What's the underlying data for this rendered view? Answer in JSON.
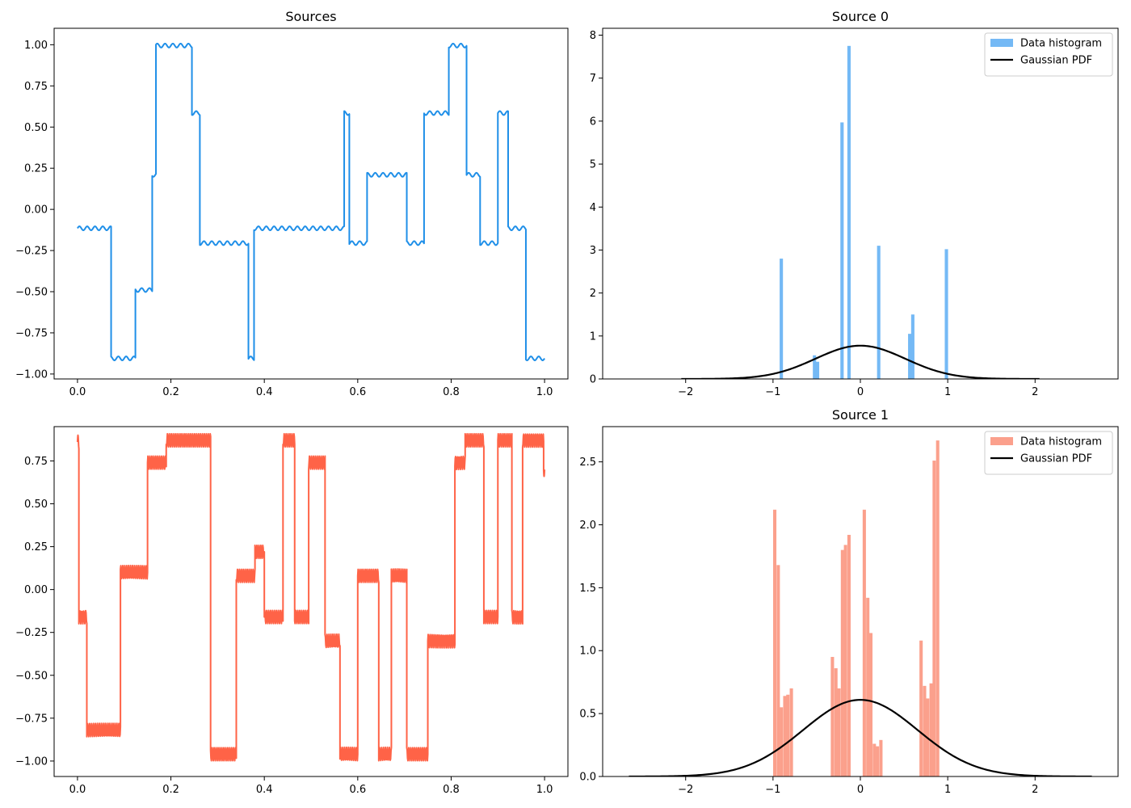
{
  "colors": {
    "source0_line": "#1f8fe8",
    "source1_line": "#ff6347",
    "hist0_fill": "#74b9f5",
    "hist1_fill": "#fba08c",
    "pdf_line": "#000000",
    "axes_edge": "#000000",
    "background": "#ffffff"
  },
  "chart_data": [
    {
      "id": "sources_top",
      "type": "line",
      "title": "Sources",
      "xlim": [
        -0.05,
        1.05
      ],
      "ylim": [
        -1.03,
        1.1
      ],
      "xticks": [
        0.0,
        0.2,
        0.4,
        0.6,
        0.8,
        1.0
      ],
      "xtick_labels": [
        "0.0",
        "0.2",
        "0.4",
        "0.6",
        "0.8",
        "1.0"
      ],
      "yticks": [
        -1.0,
        -0.75,
        -0.5,
        -0.25,
        0.0,
        0.25,
        0.5,
        0.75,
        1.0
      ],
      "ytick_labels": [
        "−1.00",
        "−0.75",
        "−0.50",
        "−0.25",
        "0.00",
        "0.25",
        "0.50",
        "0.75",
        "1.00"
      ],
      "color_key": "source0_line",
      "ripple": {
        "amplitude": 0.012,
        "cycles": 60
      },
      "segments": [
        {
          "x0": 0.0,
          "x1": 0.072,
          "y": -0.115
        },
        {
          "x0": 0.072,
          "x1": 0.124,
          "y": -0.905
        },
        {
          "x0": 0.124,
          "x1": 0.16,
          "y": -0.49
        },
        {
          "x0": 0.16,
          "x1": 0.168,
          "y": 0.21
        },
        {
          "x0": 0.168,
          "x1": 0.245,
          "y": 0.995
        },
        {
          "x0": 0.245,
          "x1": 0.262,
          "y": 0.585
        },
        {
          "x0": 0.262,
          "x1": 0.366,
          "y": -0.205
        },
        {
          "x0": 0.366,
          "x1": 0.378,
          "y": -0.905
        },
        {
          "x0": 0.378,
          "x1": 0.571,
          "y": -0.115
        },
        {
          "x0": 0.571,
          "x1": 0.582,
          "y": 0.585
        },
        {
          "x0": 0.582,
          "x1": 0.62,
          "y": -0.205
        },
        {
          "x0": 0.62,
          "x1": 0.705,
          "y": 0.21
        },
        {
          "x0": 0.705,
          "x1": 0.742,
          "y": -0.205
        },
        {
          "x0": 0.742,
          "x1": 0.795,
          "y": 0.585
        },
        {
          "x0": 0.795,
          "x1": 0.833,
          "y": 0.995
        },
        {
          "x0": 0.833,
          "x1": 0.862,
          "y": 0.21
        },
        {
          "x0": 0.862,
          "x1": 0.9,
          "y": -0.205
        },
        {
          "x0": 0.9,
          "x1": 0.922,
          "y": 0.585
        },
        {
          "x0": 0.922,
          "x1": 0.96,
          "y": -0.115
        },
        {
          "x0": 0.96,
          "x1": 1.0,
          "y": -0.905
        }
      ]
    },
    {
      "id": "sources_bottom",
      "type": "line",
      "title": "",
      "xlim": [
        -0.05,
        1.05
      ],
      "ylim": [
        -1.09,
        0.95
      ],
      "xticks": [
        0.0,
        0.2,
        0.4,
        0.6,
        0.8,
        1.0
      ],
      "xtick_labels": [
        "0.0",
        "0.2",
        "0.4",
        "0.6",
        "0.8",
        "1.0"
      ],
      "yticks": [
        -1.0,
        -0.75,
        -0.5,
        -0.25,
        0.0,
        0.25,
        0.5,
        0.75
      ],
      "ytick_labels": [
        "−1.00",
        "−0.75",
        "−0.50",
        "−0.25",
        "0.00",
        "0.25",
        "0.50",
        "0.75"
      ],
      "color_key": "source1_line",
      "ripple": {
        "amplitude": 0.04,
        "cycles": 240
      },
      "segments": [
        {
          "x0": 0.0,
          "x1": 0.003,
          "y": 0.86
        },
        {
          "x0": 0.003,
          "x1": 0.02,
          "y": -0.16
        },
        {
          "x0": 0.02,
          "x1": 0.092,
          "y": -0.82
        },
        {
          "x0": 0.092,
          "x1": 0.15,
          "y": 0.1
        },
        {
          "x0": 0.15,
          "x1": 0.19,
          "y": 0.74
        },
        {
          "x0": 0.19,
          "x1": 0.285,
          "y": 0.87
        },
        {
          "x0": 0.285,
          "x1": 0.34,
          "y": -0.96
        },
        {
          "x0": 0.34,
          "x1": 0.38,
          "y": 0.08
        },
        {
          "x0": 0.38,
          "x1": 0.4,
          "y": 0.22
        },
        {
          "x0": 0.4,
          "x1": 0.44,
          "y": -0.16
        },
        {
          "x0": 0.44,
          "x1": 0.465,
          "y": 0.87
        },
        {
          "x0": 0.465,
          "x1": 0.495,
          "y": -0.16
        },
        {
          "x0": 0.495,
          "x1": 0.53,
          "y": 0.74
        },
        {
          "x0": 0.53,
          "x1": 0.562,
          "y": -0.3
        },
        {
          "x0": 0.562,
          "x1": 0.6,
          "y": -0.96
        },
        {
          "x0": 0.6,
          "x1": 0.645,
          "y": 0.08
        },
        {
          "x0": 0.645,
          "x1": 0.672,
          "y": -0.96
        },
        {
          "x0": 0.672,
          "x1": 0.705,
          "y": 0.08
        },
        {
          "x0": 0.705,
          "x1": 0.75,
          "y": -0.96
        },
        {
          "x0": 0.75,
          "x1": 0.808,
          "y": -0.3
        },
        {
          "x0": 0.808,
          "x1": 0.83,
          "y": 0.74
        },
        {
          "x0": 0.83,
          "x1": 0.87,
          "y": 0.87
        },
        {
          "x0": 0.87,
          "x1": 0.9,
          "y": -0.16
        },
        {
          "x0": 0.9,
          "x1": 0.93,
          "y": 0.87
        },
        {
          "x0": 0.93,
          "x1": 0.953,
          "y": -0.16
        },
        {
          "x0": 0.953,
          "x1": 0.998,
          "y": 0.87
        },
        {
          "x0": 0.998,
          "x1": 1.0,
          "y": 0.7
        }
      ]
    },
    {
      "id": "hist_source0",
      "type": "bar",
      "title": "Source 0",
      "xlim": [
        -2.95,
        2.95
      ],
      "ylim": [
        0,
        8.16
      ],
      "xticks": [
        -2,
        -1,
        0,
        1,
        2
      ],
      "xtick_labels": [
        "−2",
        "−1",
        "0",
        "1",
        "2"
      ],
      "yticks": [
        0,
        1,
        2,
        3,
        4,
        5,
        6,
        7,
        8
      ],
      "ytick_labels": [
        "0",
        "1",
        "2",
        "3",
        "4",
        "5",
        "6",
        "7",
        "8"
      ],
      "bar_width": 0.038,
      "color_key": "hist0_fill",
      "bars": [
        {
          "x": -0.905,
          "h": 2.8
        },
        {
          "x": -0.525,
          "h": 0.55
        },
        {
          "x": -0.49,
          "h": 0.4
        },
        {
          "x": -0.21,
          "h": 5.97
        },
        {
          "x": -0.13,
          "h": 7.75
        },
        {
          "x": 0.21,
          "h": 3.1
        },
        {
          "x": 0.565,
          "h": 1.05
        },
        {
          "x": 0.6,
          "h": 1.5
        },
        {
          "x": 0.985,
          "h": 3.02
        }
      ],
      "pdf": {
        "mu": 0.0,
        "sigma": 0.515,
        "xmin": -2.05,
        "xmax": 2.05,
        "color_key": "pdf_line"
      },
      "legend": {
        "position": "top-right",
        "entries": [
          {
            "label": "Data histogram",
            "kind": "patch",
            "color_key": "hist0_fill"
          },
          {
            "label": "Gaussian PDF",
            "kind": "line",
            "color_key": "pdf_line"
          }
        ]
      }
    },
    {
      "id": "hist_source1",
      "type": "bar",
      "title": "Source 1",
      "xlim": [
        -2.95,
        2.95
      ],
      "ylim": [
        0,
        2.78
      ],
      "xticks": [
        -2,
        -1,
        0,
        1,
        2
      ],
      "xtick_labels": [
        "−2",
        "−1",
        "0",
        "1",
        "2"
      ],
      "yticks": [
        0.0,
        0.5,
        1.0,
        1.5,
        2.0,
        2.5
      ],
      "ytick_labels": [
        "0.0",
        "0.5",
        "1.0",
        "1.5",
        "2.0",
        "2.5"
      ],
      "bar_width": 0.0375,
      "color_key": "hist1_fill",
      "bars": [
        {
          "x": -0.98,
          "h": 2.12
        },
        {
          "x": -0.94,
          "h": 1.68
        },
        {
          "x": -0.905,
          "h": 0.55
        },
        {
          "x": -0.865,
          "h": 0.64
        },
        {
          "x": -0.83,
          "h": 0.65
        },
        {
          "x": -0.79,
          "h": 0.7
        },
        {
          "x": -0.32,
          "h": 0.95
        },
        {
          "x": -0.28,
          "h": 0.86
        },
        {
          "x": -0.245,
          "h": 0.7
        },
        {
          "x": -0.205,
          "h": 1.8
        },
        {
          "x": -0.17,
          "h": 1.84
        },
        {
          "x": -0.13,
          "h": 1.92
        },
        {
          "x": 0.045,
          "h": 2.12
        },
        {
          "x": 0.085,
          "h": 1.42
        },
        {
          "x": 0.12,
          "h": 1.14
        },
        {
          "x": 0.16,
          "h": 0.26
        },
        {
          "x": 0.195,
          "h": 0.24
        },
        {
          "x": 0.235,
          "h": 0.29
        },
        {
          "x": 0.695,
          "h": 1.08
        },
        {
          "x": 0.735,
          "h": 0.72
        },
        {
          "x": 0.77,
          "h": 0.62
        },
        {
          "x": 0.81,
          "h": 0.74
        },
        {
          "x": 0.845,
          "h": 2.51
        },
        {
          "x": 0.885,
          "h": 2.67
        }
      ],
      "pdf": {
        "mu": 0.0,
        "sigma": 0.655,
        "xmin": -2.65,
        "xmax": 2.65,
        "color_key": "pdf_line"
      },
      "legend": {
        "position": "top-right",
        "entries": [
          {
            "label": "Data histogram",
            "kind": "patch",
            "color_key": "hist1_fill"
          },
          {
            "label": "Gaussian PDF",
            "kind": "line",
            "color_key": "pdf_line"
          }
        ]
      }
    }
  ]
}
